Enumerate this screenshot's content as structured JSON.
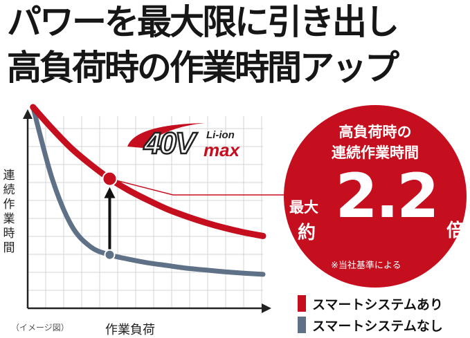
{
  "headline": {
    "line1": "パワーを最大限に引き出し",
    "line2": "高負荷時の作業時間アップ"
  },
  "chart_data": {
    "type": "line",
    "xlabel": "作業負荷",
    "ylabel": "連続作業時間",
    "note": "（イメージ図）",
    "x": [
      0,
      1,
      2,
      3,
      4,
      5,
      6,
      7,
      8,
      9,
      10,
      11,
      12
    ],
    "series": [
      {
        "name": "スマートシステムあり",
        "color": "#c50f1f",
        "values": [
          10.0,
          8.8,
          7.7,
          6.8,
          6.0,
          5.35,
          4.8,
          4.3,
          3.9,
          3.55,
          3.25,
          3.0,
          2.8
        ]
      },
      {
        "name": "スマートシステムなし",
        "color": "#5f7187",
        "values": [
          10.0,
          6.0,
          3.4,
          2.2,
          1.75,
          1.5,
          1.3,
          1.15,
          1.0,
          0.9,
          0.8,
          0.72,
          0.66
        ]
      }
    ],
    "xlim": [
      -1,
      12
    ],
    "ylim": [
      -1.2,
      10
    ],
    "marker_x": 4,
    "legend_position": "bottom-right",
    "grid": true
  },
  "logo": {
    "main": "40V",
    "sup": "Li-ion",
    "sub": "max"
  },
  "callout": {
    "title_line1": "高負荷時の",
    "title_line2": "連続作業時間",
    "prefix1": "最大",
    "prefix2": "約",
    "value": "2.2",
    "suffix": "倍",
    "note": "※当社基準による"
  }
}
